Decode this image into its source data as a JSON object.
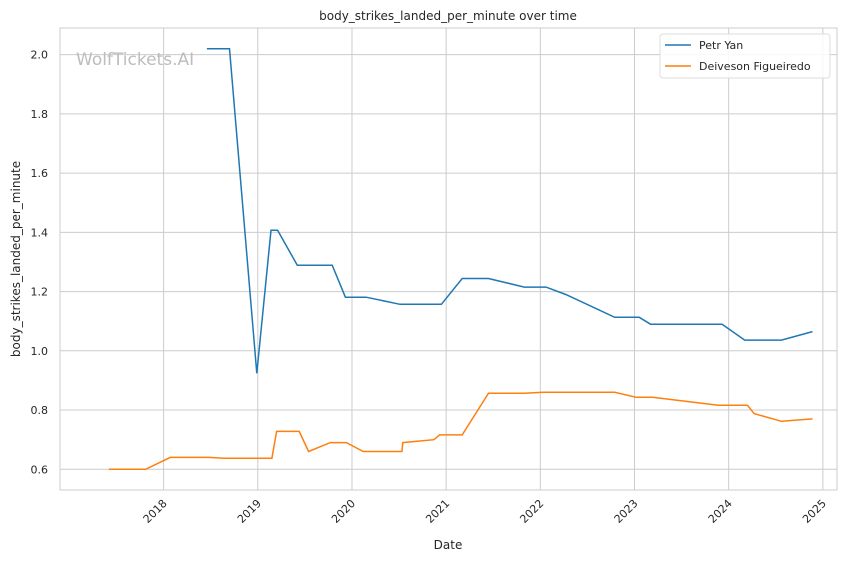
{
  "chart_data": {
    "type": "line",
    "title": "body_strikes_landed_per_minute over time",
    "xlabel": "Date",
    "ylabel": "body_strikes_landed_per_minute",
    "watermark": "WolfTickets.AI",
    "xlim": [
      2016.9,
      2025.15
    ],
    "ylim": [
      0.53,
      2.09
    ],
    "xticks": [
      2018,
      2019,
      2020,
      2021,
      2022,
      2023,
      2024,
      2025
    ],
    "xtick_labels": [
      "2018",
      "2019",
      "2020",
      "2021",
      "2022",
      "2023",
      "2024",
      "2025"
    ],
    "yticks": [
      0.6,
      0.8,
      1.0,
      1.2,
      1.4,
      1.6,
      1.8,
      2.0
    ],
    "ytick_labels": [
      "0.6",
      "0.8",
      "1.0",
      "1.2",
      "1.4",
      "1.6",
      "1.8",
      "2.0"
    ],
    "grid": true,
    "legend_position": "top-right",
    "series": [
      {
        "name": "Petr Yan",
        "color": "#1f77b4",
        "x": [
          2018.46,
          2018.7,
          2018.99,
          2019.14,
          2019.21,
          2019.42,
          2019.79,
          2019.93,
          2020.15,
          2020.51,
          2020.95,
          2021.17,
          2021.45,
          2021.83,
          2022.06,
          2022.27,
          2022.79,
          2023.05,
          2023.17,
          2023.93,
          2024.17,
          2024.56,
          2024.89
        ],
        "y": [
          2.02,
          2.02,
          0.924,
          1.407,
          1.407,
          1.289,
          1.289,
          1.181,
          1.181,
          1.157,
          1.157,
          1.244,
          1.244,
          1.215,
          1.215,
          1.19,
          1.113,
          1.113,
          1.09,
          1.09,
          1.036,
          1.036,
          1.065
        ]
      },
      {
        "name": "Deiveson Figueiredo",
        "color": "#ff7f0e",
        "x": [
          2017.42,
          2017.81,
          2018.07,
          2018.48,
          2018.64,
          2019.15,
          2019.2,
          2019.44,
          2019.54,
          2019.77,
          2019.94,
          2020.12,
          2020.53,
          2020.54,
          2020.87,
          2020.93,
          2021.17,
          2021.45,
          2021.83,
          2022.03,
          2022.79,
          2023.02,
          2023.19,
          2023.89,
          2024.2,
          2024.27,
          2024.56,
          2024.89
        ],
        "y": [
          0.6,
          0.6,
          0.64,
          0.64,
          0.637,
          0.637,
          0.728,
          0.728,
          0.66,
          0.69,
          0.69,
          0.66,
          0.66,
          0.69,
          0.7,
          0.716,
          0.716,
          0.857,
          0.857,
          0.86,
          0.86,
          0.843,
          0.843,
          0.816,
          0.816,
          0.788,
          0.762,
          0.77
        ]
      }
    ]
  }
}
